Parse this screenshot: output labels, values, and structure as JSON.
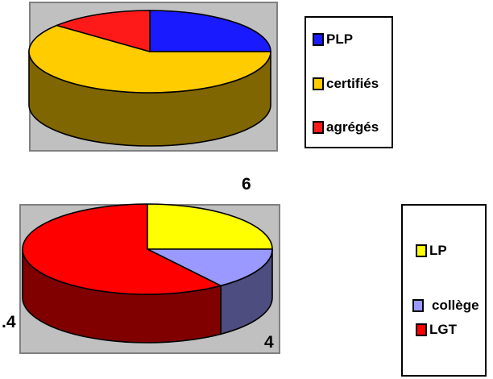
{
  "chart_data": [
    {
      "type": "pie",
      "three_d": true,
      "categories": [
        "PLP",
        "certifiés",
        "agrégés"
      ],
      "values": [
        25,
        61,
        14
      ],
      "colors": [
        "#1a1aff",
        "#ffcc00",
        "#ff1a1a"
      ],
      "legend": {
        "placement": "right",
        "entries": [
          "PLP",
          "certifiés",
          "agrégés"
        ]
      }
    },
    {
      "type": "pie",
      "three_d": true,
      "categories": [
        "LP",
        "collège",
        "LGT"
      ],
      "values": [
        25,
        15,
        60
      ],
      "colors": [
        "#ffff00",
        "#9999ff",
        "#ff0000"
      ],
      "data_labels": [
        "6",
        "4",
        ".4"
      ],
      "legend": {
        "placement": "right",
        "entries": [
          "LP",
          "collège",
          "LGT"
        ]
      }
    }
  ]
}
